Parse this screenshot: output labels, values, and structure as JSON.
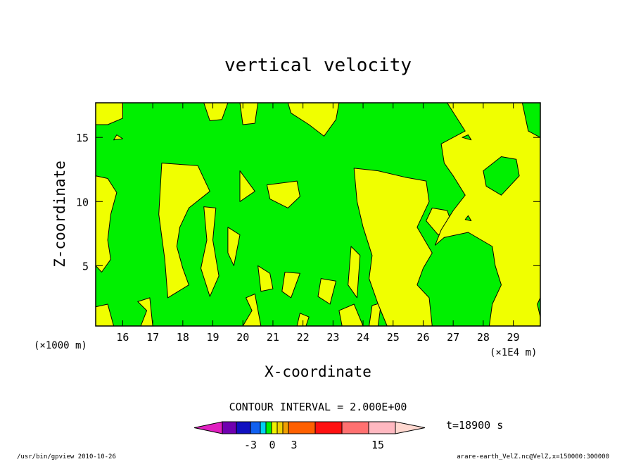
{
  "chart_data": {
    "type": "heatmap",
    "title": "vertical velocity",
    "xlabel": "X-coordinate",
    "ylabel": "Z-coordinate",
    "x_unit_left": "(×1000 m)",
    "x_unit_right": "(×1E4 m)",
    "xlim": [
      15.1,
      29.9
    ],
    "ylim": [
      0.3,
      17.7
    ],
    "x_ticks": [
      "16",
      "17",
      "18",
      "19",
      "20",
      "21",
      "22",
      "23",
      "24",
      "25",
      "26",
      "27",
      "28",
      "29"
    ],
    "y_ticks": [
      "5",
      "10",
      "15"
    ],
    "x_tick_values": [
      16,
      17,
      18,
      19,
      20,
      21,
      22,
      23,
      24,
      25,
      26,
      27,
      28,
      29
    ],
    "y_tick_values": [
      5,
      10,
      15
    ],
    "contour_interval_text": "CONTOUR INTERVAL = 2.000E+00",
    "time_label": "t=18900 s",
    "colorbar_labels": [
      "-3",
      "0",
      "3",
      "15"
    ],
    "colorbar_colors": [
      "#e020c0",
      "#7000b0",
      "#1010c0",
      "#1060f0",
      "#00d0f0",
      "#00f000",
      "#f0f000",
      "#f0d000",
      "#f0a000",
      "#ff6000",
      "#ff1010",
      "#ff7070",
      "#ffb8c0",
      "#ffd8d0"
    ],
    "colors": {
      "green_region": "#00f000",
      "yellow_region": "#f0ff00",
      "outline": "#000000"
    },
    "regions": [
      {
        "level": "yellow",
        "poly": [
          [
            15.1,
            17.7
          ],
          [
            16.0,
            17.7
          ],
          [
            16.0,
            16.5
          ],
          [
            15.5,
            16.0
          ],
          [
            15.1,
            16.0
          ]
        ]
      },
      {
        "level": "yellow",
        "poly": [
          [
            18.7,
            17.7
          ],
          [
            19.5,
            17.7
          ],
          [
            19.3,
            16.4
          ],
          [
            18.9,
            16.3
          ]
        ]
      },
      {
        "level": "yellow",
        "poly": [
          [
            19.9,
            17.7
          ],
          [
            20.5,
            17.7
          ],
          [
            20.4,
            16.1
          ],
          [
            20.0,
            16.0
          ]
        ]
      },
      {
        "level": "yellow",
        "poly": [
          [
            21.5,
            17.7
          ],
          [
            23.2,
            17.7
          ],
          [
            23.1,
            16.4
          ],
          [
            22.7,
            15.1
          ],
          [
            22.2,
            16.0
          ],
          [
            21.6,
            16.9
          ]
        ]
      },
      {
        "level": "yellow",
        "poly": [
          [
            15.8,
            15.2
          ],
          [
            16.0,
            14.9
          ],
          [
            15.7,
            14.8
          ]
        ]
      },
      {
        "level": "yellow",
        "poly": [
          [
            15.1,
            12.0
          ],
          [
            15.5,
            11.8
          ],
          [
            15.8,
            10.7
          ],
          [
            15.6,
            9.0
          ],
          [
            15.5,
            7.0
          ],
          [
            15.6,
            5.5
          ],
          [
            15.3,
            4.5
          ],
          [
            15.1,
            5.0
          ]
        ]
      },
      {
        "level": "yellow",
        "poly": [
          [
            17.3,
            13.0
          ],
          [
            18.5,
            12.8
          ],
          [
            18.9,
            10.8
          ],
          [
            18.2,
            9.5
          ],
          [
            17.9,
            8.0
          ],
          [
            17.8,
            6.5
          ],
          [
            18.0,
            4.8
          ],
          [
            18.2,
            3.5
          ],
          [
            17.5,
            2.5
          ],
          [
            17.4,
            5.5
          ],
          [
            17.2,
            9.0
          ]
        ]
      },
      {
        "level": "yellow",
        "poly": [
          [
            19.9,
            12.4
          ],
          [
            20.4,
            10.8
          ],
          [
            19.9,
            10.0
          ]
        ]
      },
      {
        "level": "yellow",
        "poly": [
          [
            20.8,
            11.3
          ],
          [
            21.8,
            11.6
          ],
          [
            21.9,
            10.4
          ],
          [
            21.5,
            9.5
          ],
          [
            20.9,
            10.2
          ]
        ]
      },
      {
        "level": "yellow",
        "poly": [
          [
            18.7,
            9.6
          ],
          [
            19.1,
            9.5
          ],
          [
            19.0,
            7.0
          ],
          [
            19.2,
            4.2
          ],
          [
            18.9,
            2.6
          ],
          [
            18.6,
            4.8
          ],
          [
            18.8,
            7.0
          ]
        ]
      },
      {
        "level": "yellow",
        "poly": [
          [
            19.5,
            8.0
          ],
          [
            19.9,
            7.4
          ],
          [
            19.7,
            5.0
          ],
          [
            19.5,
            6.0
          ]
        ]
      },
      {
        "level": "yellow",
        "poly": [
          [
            20.5,
            5.0
          ],
          [
            20.9,
            4.4
          ],
          [
            21.0,
            3.2
          ],
          [
            20.6,
            3.0
          ]
        ]
      },
      {
        "level": "yellow",
        "poly": [
          [
            21.4,
            4.5
          ],
          [
            21.9,
            4.4
          ],
          [
            21.6,
            2.5
          ],
          [
            21.3,
            3.0
          ]
        ]
      },
      {
        "level": "yellow",
        "poly": [
          [
            22.6,
            4.0
          ],
          [
            23.1,
            3.8
          ],
          [
            22.9,
            2.0
          ],
          [
            22.5,
            2.6
          ]
        ]
      },
      {
        "level": "yellow",
        "poly": [
          [
            23.6,
            6.5
          ],
          [
            23.9,
            5.8
          ],
          [
            23.8,
            2.5
          ],
          [
            23.5,
            3.5
          ]
        ]
      },
      {
        "level": "yellow",
        "poly": [
          [
            15.1,
            0.3
          ],
          [
            15.1,
            1.8
          ],
          [
            15.5,
            2.0
          ],
          [
            15.7,
            0.3
          ]
        ]
      },
      {
        "level": "yellow",
        "poly": [
          [
            16.6,
            0.3
          ],
          [
            16.8,
            1.5
          ],
          [
            16.5,
            2.2
          ],
          [
            16.9,
            2.5
          ],
          [
            17.0,
            0.3
          ]
        ]
      },
      {
        "level": "yellow",
        "poly": [
          [
            20.0,
            0.3
          ],
          [
            20.3,
            1.5
          ],
          [
            20.1,
            2.5
          ],
          [
            20.4,
            2.8
          ],
          [
            20.6,
            0.3
          ]
        ]
      },
      {
        "level": "yellow",
        "poly": [
          [
            21.8,
            0.3
          ],
          [
            21.9,
            1.3
          ],
          [
            22.2,
            1.0
          ],
          [
            22.1,
            0.3
          ]
        ]
      },
      {
        "level": "yellow",
        "poly": [
          [
            23.3,
            0.3
          ],
          [
            23.2,
            1.5
          ],
          [
            23.7,
            2.0
          ],
          [
            24.0,
            0.3
          ]
        ]
      },
      {
        "level": "yellow",
        "poly": [
          [
            24.2,
            0.3
          ],
          [
            24.3,
            1.9
          ],
          [
            24.6,
            2.1
          ],
          [
            24.5,
            0.3
          ]
        ]
      },
      {
        "level": "yellow",
        "poly": [
          [
            23.7,
            12.6
          ],
          [
            24.5,
            12.4
          ],
          [
            25.4,
            11.9
          ],
          [
            26.1,
            11.6
          ],
          [
            26.2,
            10.0
          ],
          [
            25.8,
            8.0
          ],
          [
            26.3,
            6.0
          ],
          [
            26.0,
            4.8
          ],
          [
            25.8,
            3.5
          ],
          [
            26.2,
            2.5
          ],
          [
            26.3,
            0.3
          ],
          [
            24.8,
            0.3
          ],
          [
            24.5,
            2.0
          ],
          [
            24.2,
            4.0
          ],
          [
            24.3,
            5.8
          ],
          [
            24.0,
            8.0
          ],
          [
            23.8,
            10.0
          ]
        ]
      },
      {
        "level": "yellow",
        "poly": [
          [
            26.1,
            8.5
          ],
          [
            26.3,
            9.5
          ],
          [
            26.8,
            9.3
          ],
          [
            27.0,
            8.0
          ],
          [
            26.5,
            7.4
          ]
        ]
      },
      {
        "level": "yellow",
        "poly": [
          [
            26.8,
            17.7
          ],
          [
            29.9,
            17.7
          ],
          [
            29.9,
            0.3
          ],
          [
            28.2,
            0.3
          ],
          [
            28.3,
            2.0
          ],
          [
            28.6,
            3.5
          ],
          [
            28.4,
            5.0
          ],
          [
            28.3,
            6.5
          ],
          [
            27.5,
            7.6
          ],
          [
            26.7,
            7.2
          ],
          [
            26.4,
            6.6
          ],
          [
            26.6,
            7.8
          ],
          [
            27.0,
            9.3
          ],
          [
            27.4,
            10.5
          ],
          [
            27.0,
            12.0
          ],
          [
            26.7,
            13.0
          ],
          [
            26.6,
            14.5
          ],
          [
            27.4,
            15.5
          ]
        ]
      },
      {
        "level": "green",
        "poly": [
          [
            28.0,
            12.4
          ],
          [
            28.6,
            13.5
          ],
          [
            29.1,
            13.3
          ],
          [
            29.2,
            12.0
          ],
          [
            28.6,
            10.5
          ],
          [
            28.1,
            11.2
          ]
        ]
      },
      {
        "level": "green",
        "poly": [
          [
            29.3,
            17.7
          ],
          [
            29.9,
            17.7
          ],
          [
            29.9,
            15.0
          ],
          [
            29.5,
            15.5
          ]
        ]
      },
      {
        "level": "green",
        "poly": [
          [
            27.3,
            15.0
          ],
          [
            27.5,
            15.2
          ],
          [
            27.6,
            14.8
          ]
        ]
      },
      {
        "level": "green",
        "poly": [
          [
            27.4,
            8.6
          ],
          [
            27.5,
            8.9
          ],
          [
            27.6,
            8.5
          ]
        ]
      },
      {
        "level": "green",
        "poly": [
          [
            29.8,
            2.0
          ],
          [
            29.9,
            2.5
          ],
          [
            29.9,
            1.0
          ]
        ]
      }
    ]
  },
  "footer": {
    "left_text": "/usr/bin/gpview   2010-10-26",
    "right_text": "arare-earth_VelZ.nc@VelZ,x=150000:300000"
  }
}
